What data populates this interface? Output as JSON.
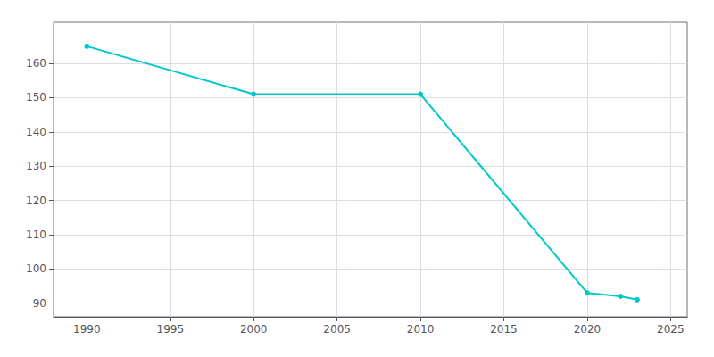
{
  "chart_data": {
    "type": "line",
    "x": [
      1990,
      2000,
      2010,
      2020,
      2022,
      2023
    ],
    "values": [
      165,
      151,
      151,
      93,
      92,
      91
    ],
    "color": "#00C8C8",
    "marker": "circle",
    "xlim": [
      1988,
      2026
    ],
    "ylim": [
      86,
      172
    ],
    "xticks": [
      1990,
      1995,
      2000,
      2005,
      2010,
      2015,
      2020,
      2025
    ],
    "yticks": [
      90,
      100,
      110,
      120,
      130,
      140,
      150,
      160
    ],
    "grid": true
  }
}
